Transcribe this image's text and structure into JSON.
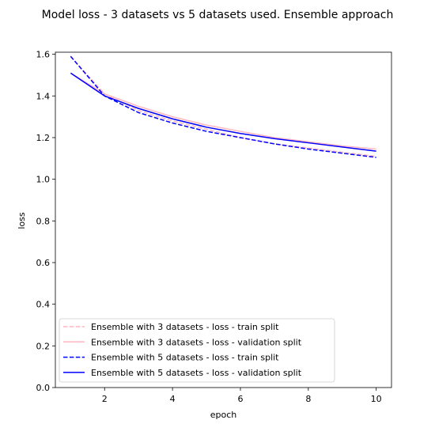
{
  "chart_data": {
    "type": "line",
    "title": "Model loss - 3 datasets vs 5 datasets used. Ensemble  approach",
    "xlabel": "epoch",
    "ylabel": "loss",
    "xlim": [
      0.55,
      10.45
    ],
    "ylim": [
      0.0,
      1.61
    ],
    "xticks": [
      2,
      4,
      6,
      8,
      10
    ],
    "xtick_labels": [
      "2",
      "4",
      "6",
      "8",
      "10"
    ],
    "yticks": [
      0.0,
      0.2,
      0.4,
      0.6,
      0.8,
      1.0,
      1.2,
      1.4,
      1.6
    ],
    "ytick_labels": [
      "0.0",
      "0.2",
      "0.4",
      "0.6",
      "0.8",
      "1.0",
      "1.2",
      "1.4",
      "1.6"
    ],
    "grid": false,
    "legend_position": "lower-left",
    "x": [
      1,
      2,
      3,
      4,
      5,
      6,
      7,
      8,
      9,
      10
    ],
    "series": [
      {
        "name": "Ensemble with 3 datasets - loss - train split",
        "color": "#ffb6c1",
        "dash": "dashed",
        "values": [
          1.59,
          1.41,
          1.33,
          1.28,
          1.24,
          1.2,
          1.17,
          1.15,
          1.13,
          1.11
        ]
      },
      {
        "name": "Ensemble with 3 datasets - loss - validation split",
        "color": "#ffb6c1",
        "dash": "solid",
        "values": [
          1.51,
          1.41,
          1.35,
          1.3,
          1.26,
          1.23,
          1.2,
          1.18,
          1.16,
          1.145
        ]
      },
      {
        "name": "Ensemble with 5 datasets - loss - train split",
        "color": "#0000ff",
        "dash": "dashed",
        "values": [
          1.59,
          1.4,
          1.32,
          1.27,
          1.23,
          1.2,
          1.17,
          1.145,
          1.125,
          1.105
        ]
      },
      {
        "name": "Ensemble with 5 datasets - loss - validation split",
        "color": "#0000ff",
        "dash": "solid",
        "values": [
          1.51,
          1.4,
          1.34,
          1.29,
          1.25,
          1.22,
          1.195,
          1.175,
          1.155,
          1.135
        ]
      }
    ]
  }
}
